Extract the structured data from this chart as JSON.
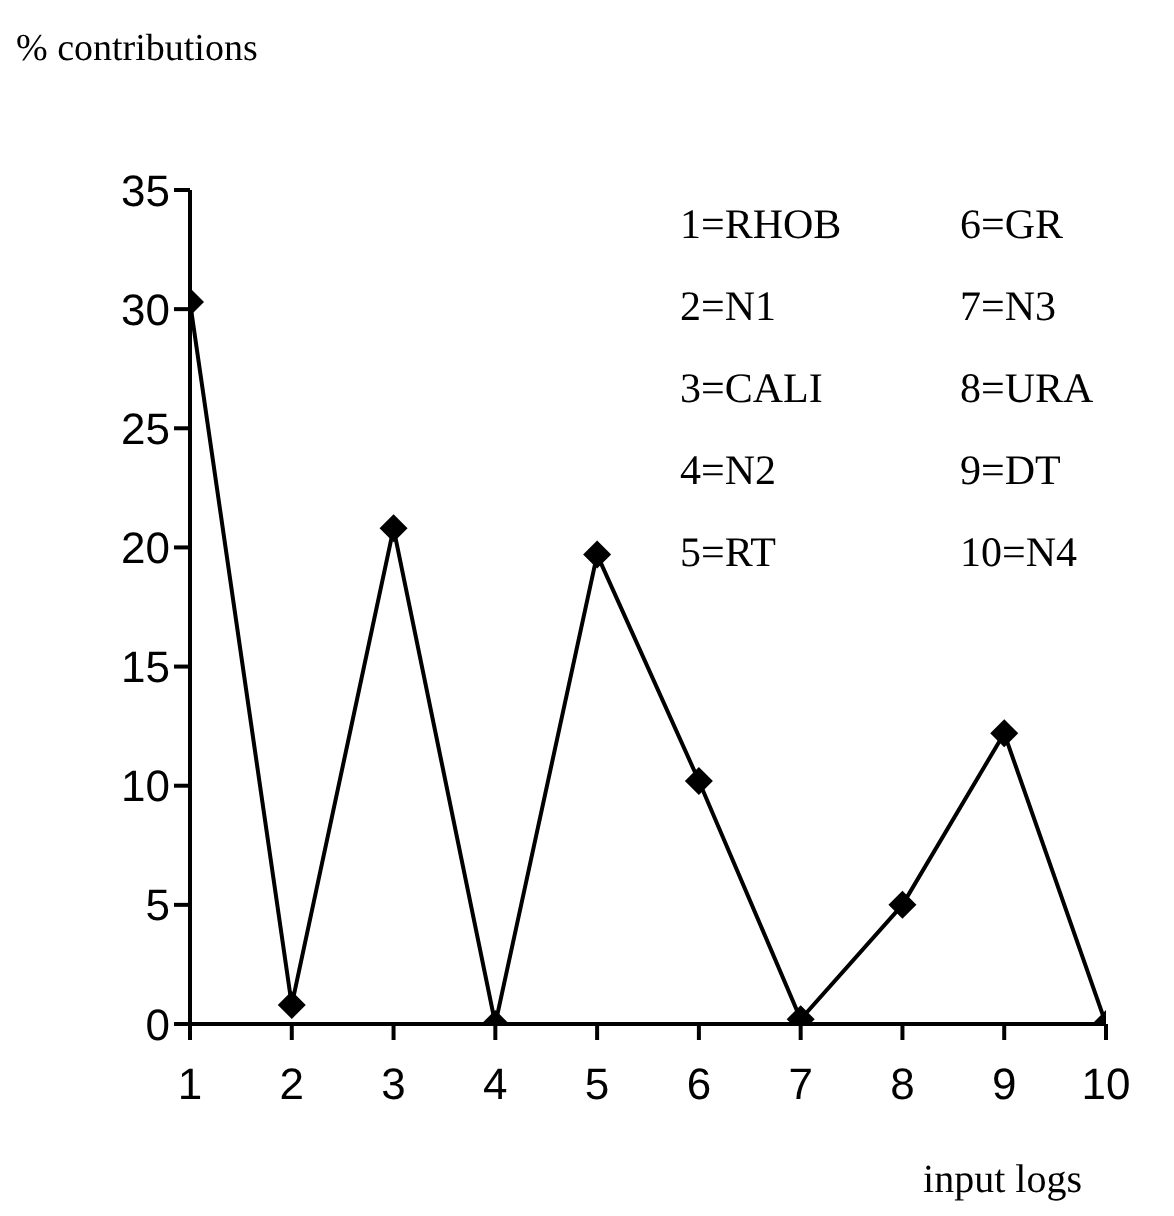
{
  "chart_data": {
    "type": "line",
    "title": "% contributions",
    "xlabel": "input logs",
    "x": [
      1,
      2,
      3,
      4,
      5,
      6,
      7,
      8,
      9,
      10
    ],
    "series": [
      {
        "color": "#000000",
        "values": [
          30.3,
          0.8,
          20.8,
          0,
          19.7,
          10.2,
          0.2,
          5,
          12.2,
          0
        ]
      }
    ],
    "xlim": [
      1,
      10
    ],
    "xticks": [
      1,
      2,
      3,
      4,
      5,
      6,
      7,
      8,
      9,
      10
    ],
    "ylim": [
      0,
      35
    ],
    "yticks": [
      0,
      5,
      10,
      15,
      20,
      25,
      30,
      35
    ],
    "annotations": [
      "1=RHOB",
      "2=N1",
      "3=CALI",
      "4=N2",
      "5=RT",
      "6=GR",
      "7=N3",
      "8=URA",
      "9=DT",
      "10=N4"
    ],
    "grid": false,
    "legend": false,
    "marker": "diamond",
    "line_style": "solid"
  }
}
